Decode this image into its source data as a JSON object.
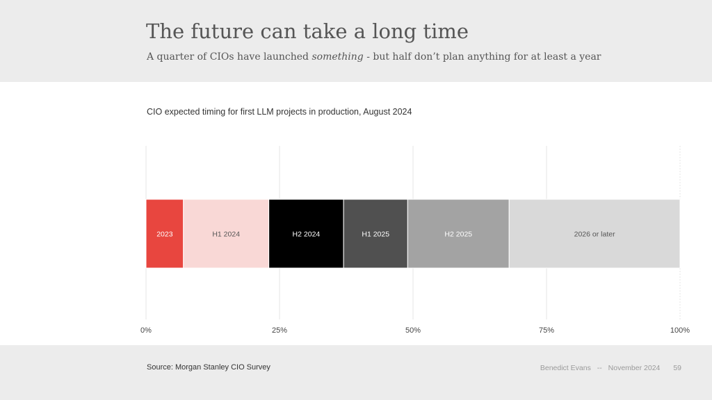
{
  "slide": {
    "title": "The future can take a long time",
    "subtitle_before": "A quarter of CIOs have launched ",
    "subtitle_emphasis": "something",
    "subtitle_after": " - but half don’t plan anything for at least a year"
  },
  "chart_data": {
    "type": "bar",
    "stacked": true,
    "orientation": "horizontal",
    "title": "CIO expected timing for first LLM projects in production, August 2024",
    "xlim": [
      0,
      100
    ],
    "xticks": [
      "0%",
      "25%",
      "50%",
      "75%",
      "100%"
    ],
    "xtick_values": [
      0,
      25,
      50,
      75,
      100
    ],
    "grid": true,
    "series": [
      {
        "name": "2023",
        "value": 7,
        "color": "#e8463f",
        "label_color": "#ffffff"
      },
      {
        "name": "H1 2024",
        "value": 16,
        "color": "#f9d8d6",
        "label_color": "#555555"
      },
      {
        "name": "H2 2024",
        "value": 14,
        "color": "#000000",
        "label_color": "#ffffff"
      },
      {
        "name": "H1 2025",
        "value": 12,
        "color": "#505050",
        "label_color": "#ffffff"
      },
      {
        "name": "H2 2025",
        "value": 19,
        "color": "#a3a3a3",
        "label_color": "#ffffff"
      },
      {
        "name": "2026 or later",
        "value": 32,
        "color": "#d9d9d9",
        "label_color": "#555555"
      }
    ]
  },
  "footer": {
    "source": "Source: Morgan Stanley CIO Survey",
    "author": "Benedict Evans",
    "separator": "--",
    "date": "November 2024",
    "page": "59"
  }
}
